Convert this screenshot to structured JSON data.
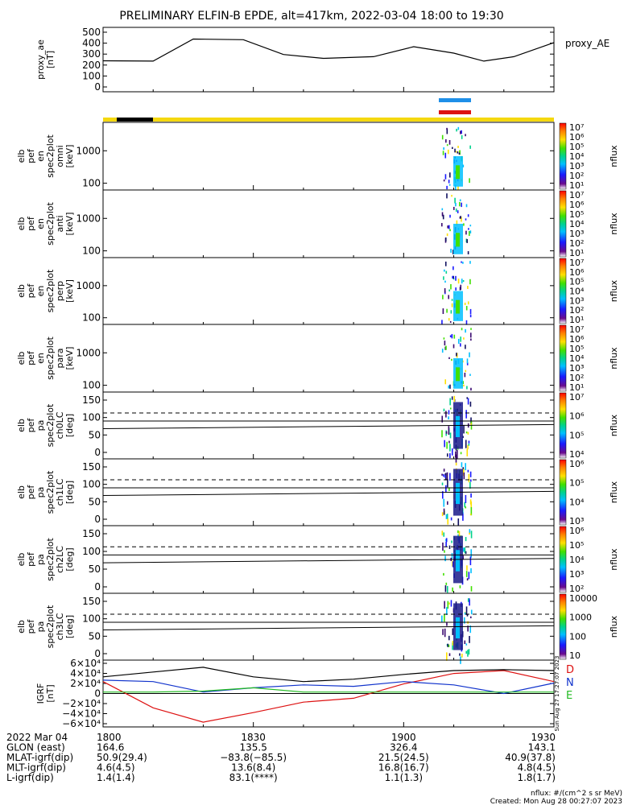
{
  "title": "PRELIMINARY ELFIN-B EPDE, alt=417km, 2022-03-04 18:00 to 19:30",
  "panels": [
    {
      "id": "proxy_ae",
      "ylabel": [
        "proxy_ae",
        "[nT]"
      ],
      "right_label": "proxy_AE",
      "yticks": [
        "500",
        "400",
        "300",
        "200",
        "100",
        "0"
      ]
    },
    {
      "id": "omni",
      "ylabel": [
        "elb",
        "pef",
        "en",
        "spec2plot",
        "omni",
        "[keV]"
      ],
      "yticks": [
        "1000",
        "100"
      ],
      "cbar_label": "nflux",
      "cbar_ticks": [
        "10⁷",
        "10⁶",
        "10⁵",
        "10⁴",
        "10³",
        "10²",
        "10¹"
      ]
    },
    {
      "id": "anti",
      "ylabel": [
        "elb",
        "pef",
        "en",
        "spec2plot",
        "anti",
        "[keV]"
      ],
      "yticks": [
        "1000",
        "100"
      ],
      "cbar_label": "nflux",
      "cbar_ticks": [
        "10⁷",
        "10⁶",
        "10⁵",
        "10⁴",
        "10³",
        "10²",
        "10¹"
      ]
    },
    {
      "id": "perp",
      "ylabel": [
        "elb",
        "pef",
        "en",
        "spec2plot",
        "perp",
        "[keV]"
      ],
      "yticks": [
        "1000",
        "100"
      ],
      "cbar_label": "nflux",
      "cbar_ticks": [
        "10⁷",
        "10⁶",
        "10⁵",
        "10⁴",
        "10³",
        "10²",
        "10¹"
      ]
    },
    {
      "id": "para",
      "ylabel": [
        "elb",
        "pef",
        "en",
        "spec2plot",
        "para",
        "[keV]"
      ],
      "yticks": [
        "1000",
        "100"
      ],
      "cbar_label": "nflux",
      "cbar_ticks": [
        "10⁷",
        "10⁶",
        "10⁵",
        "10⁴",
        "10³",
        "10²",
        "10¹"
      ]
    },
    {
      "id": "ch0LC",
      "ylabel": [
        "elb",
        "pef",
        "pa",
        "spec2plot",
        "ch0LC",
        "[deg]"
      ],
      "yticks": [
        "150",
        "100",
        "50",
        "0"
      ],
      "cbar_label": "nflux",
      "cbar_ticks": [
        "10⁷",
        "10⁶",
        "10⁵",
        "10⁴"
      ]
    },
    {
      "id": "ch1LC",
      "ylabel": [
        "elb",
        "pef",
        "pa",
        "spec2plot",
        "ch1LC",
        "[deg]"
      ],
      "yticks": [
        "150",
        "100",
        "50",
        "0"
      ],
      "cbar_label": "nflux",
      "cbar_ticks": [
        "10⁶",
        "10⁵",
        "10⁴",
        "10³"
      ]
    },
    {
      "id": "ch2LC",
      "ylabel": [
        "elb",
        "pef",
        "pa",
        "spec2plot",
        "ch2LC",
        "[deg]"
      ],
      "yticks": [
        "150",
        "100",
        "50",
        "0"
      ],
      "cbar_label": "nflux",
      "cbar_ticks": [
        "10⁶",
        "10⁵",
        "10⁴",
        "10³",
        "10²"
      ]
    },
    {
      "id": "ch3LC",
      "ylabel": [
        "elb",
        "pef",
        "pa",
        "spec2plot",
        "ch3LC",
        "[deg]"
      ],
      "yticks": [
        "150",
        "100",
        "50",
        "0"
      ],
      "cbar_label": "nflux",
      "cbar_ticks": [
        "10000",
        "1000",
        "100",
        "10"
      ]
    },
    {
      "id": "igrf",
      "ylabel": [
        "IGRF",
        "[nT]"
      ],
      "yticks": [
        "6×10⁴",
        "4×10⁴",
        "2×10⁴",
        "0",
        "−2×10⁴",
        "−4×10⁴",
        "−6×10⁴"
      ],
      "legend": [
        "D",
        "N",
        "E"
      ],
      "side_text": "Sun Aug 27 17:27:07 2023"
    }
  ],
  "time_axis": {
    "rows": [
      {
        "label": "2022 Mar 04",
        "values": [
          "1800",
          "1830",
          "1900",
          "1930"
        ]
      },
      {
        "label": "GLON (east)",
        "values": [
          "164.6",
          "135.5",
          "326.4",
          "143.1"
        ]
      },
      {
        "label": "MLAT-igrf(dip)",
        "values": [
          "50.9(29.4)",
          "−83.8(−85.5)",
          "21.5(24.5)",
          "40.9(37.8)"
        ]
      },
      {
        "label": "MLT-igrf(dip)",
        "values": [
          "4.6(4.5)",
          "13.6(8.4)",
          "16.8(16.7)",
          "4.8(4.5)"
        ]
      },
      {
        "label": "L-igrf(dip)",
        "values": [
          "1.4(1.4)",
          "83.1(****)",
          "1.1(1.3)",
          "1.8(1.7)"
        ]
      }
    ]
  },
  "footer": {
    "units": "nflux: #/(cm^2 s sr MeV)",
    "created": "Created: Mon Aug 28 00:27:07 2023"
  },
  "colors": {
    "status_yellow": "#f5d80f",
    "status_black": "#000000",
    "bar_blue": "#1e8fe8",
    "bar_red": "#dd1111",
    "igrf_D": "#dd1111",
    "igrf_N": "#1133cc",
    "igrf_E": "#22bb22"
  },
  "chart_data": [
    {
      "type": "line",
      "name": "proxy_ae",
      "x_unit": "minutes from 18:00",
      "x": [
        0,
        10,
        18,
        28,
        36,
        44,
        54,
        62,
        70,
        76,
        82,
        90
      ],
      "values": [
        265,
        262,
        450,
        445,
        318,
        285,
        300,
        385,
        330,
        262,
        300,
        420
      ],
      "ylim": [
        0,
        550
      ],
      "xlim": [
        0,
        90
      ]
    },
    {
      "type": "line",
      "name": "IGRF",
      "x_unit": "minutes from 18:00",
      "ylim": [
        -70000,
        70000
      ],
      "xlim": [
        0,
        90
      ],
      "series": [
        {
          "name": "D",
          "x": [
            0,
            10,
            20,
            30,
            40,
            50,
            60,
            70,
            80,
            90
          ],
          "values": [
            25000,
            -30000,
            -60000,
            -40000,
            -18000,
            -10000,
            20000,
            42000,
            48000,
            25000
          ]
        },
        {
          "name": "N",
          "x": [
            0,
            10,
            20,
            30,
            40,
            50,
            60,
            70,
            80,
            90
          ],
          "values": [
            28000,
            25000,
            3000,
            12000,
            18000,
            15000,
            25000,
            18000,
            0,
            22000
          ]
        },
        {
          "name": "E",
          "x": [
            0,
            10,
            20,
            30,
            40,
            50,
            60,
            70,
            80,
            90
          ],
          "values": [
            3000,
            3000,
            5000,
            12000,
            3000,
            3000,
            3000,
            3000,
            3000,
            3000
          ]
        },
        {
          "name": "total",
          "x": [
            0,
            10,
            20,
            30,
            40,
            50,
            60,
            70,
            80,
            90
          ],
          "values": [
            35000,
            45000,
            55000,
            35000,
            25000,
            30000,
            40000,
            48000,
            50000,
            48000
          ]
        }
      ]
    }
  ]
}
